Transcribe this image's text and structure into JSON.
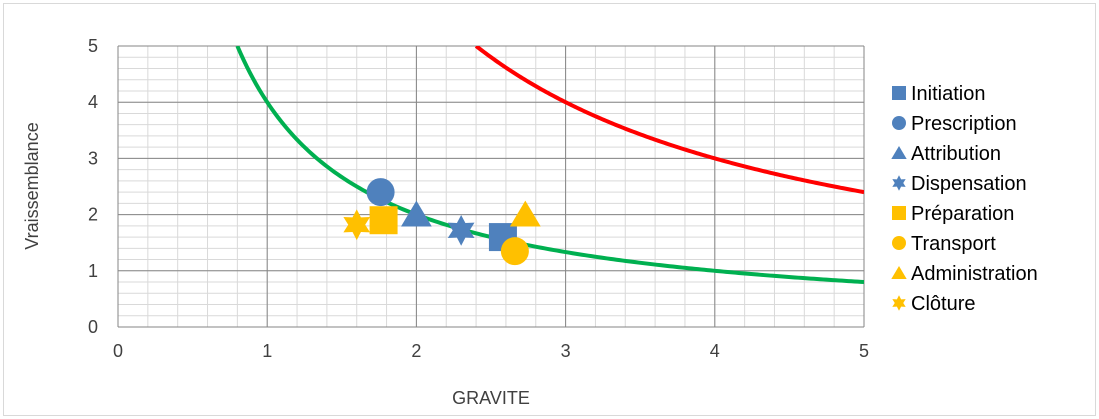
{
  "chart_data": {
    "type": "scatter",
    "title": "",
    "xlabel": "GRAVITE",
    "ylabel": "Vraissemblance",
    "xlim": [
      0,
      5
    ],
    "ylim": [
      0,
      5
    ],
    "x_ticks": [
      "0",
      "1",
      "2",
      "3",
      "4",
      "5"
    ],
    "y_ticks": [
      "0",
      "1",
      "2",
      "3",
      "4",
      "5"
    ],
    "x_minor_step": 0.2,
    "y_minor_step": 0.2,
    "grid": true,
    "legend_position": "right",
    "series": [
      {
        "name": "Initiation",
        "marker": "square",
        "color": "#4f81bd",
        "points": [
          [
            2.58,
            1.6
          ]
        ]
      },
      {
        "name": "Prescription",
        "marker": "circle",
        "color": "#4f81bd",
        "points": [
          [
            1.76,
            2.4
          ]
        ]
      },
      {
        "name": "Attribution",
        "marker": "triangle",
        "color": "#4f81bd",
        "points": [
          [
            2.0,
            2.0
          ]
        ]
      },
      {
        "name": "Dispensation",
        "marker": "star6",
        "color": "#4f81bd",
        "points": [
          [
            2.3,
            1.72
          ]
        ]
      },
      {
        "name": "Préparation",
        "marker": "square",
        "color": "#ffc000",
        "points": [
          [
            1.78,
            1.9
          ]
        ]
      },
      {
        "name": "Transport",
        "marker": "circle",
        "color": "#ffc000",
        "points": [
          [
            2.66,
            1.35
          ]
        ]
      },
      {
        "name": "Administration",
        "marker": "triangle",
        "color": "#ffc000",
        "points": [
          [
            2.73,
            2.0
          ]
        ]
      },
      {
        "name": "Clôture",
        "marker": "star6",
        "color": "#ffc000",
        "points": [
          [
            1.6,
            1.82
          ]
        ]
      }
    ],
    "curves": [
      {
        "formula": "y = 12 / x",
        "k": 12,
        "color": "#ff0000"
      },
      {
        "formula": "y = 4 / x",
        "k": 4,
        "color": "#00b050"
      }
    ]
  }
}
